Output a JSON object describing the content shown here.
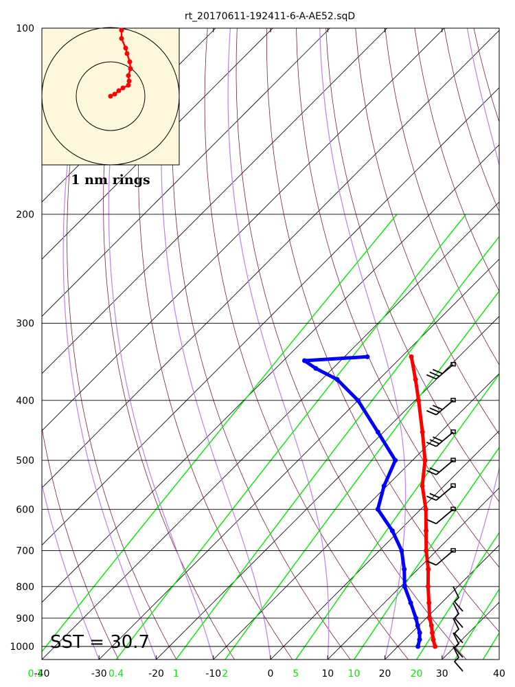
{
  "title": "rt_20170611-192411-6-A-AE52.sqD",
  "sst_label": "SST = 30.7",
  "inset_caption": "1 nm rings",
  "chart_data": {
    "type": "skew-t log-p sounding",
    "y_axis": {
      "scale": "log",
      "range": [
        1050,
        100
      ],
      "ticks": [
        100,
        200,
        300,
        400,
        500,
        600,
        700,
        800,
        900,
        1000
      ]
    },
    "x_axis": {
      "range": [
        -40,
        40
      ],
      "ticks": [
        -40,
        -30,
        -20,
        -10,
        0,
        10,
        20,
        30,
        40
      ]
    },
    "mixing_ratio_labels": [
      "0.1",
      "0.4",
      "1",
      "2",
      "5",
      "10",
      "20"
    ],
    "temperature": {
      "color": "#ff0000",
      "points": [
        [
          1000,
          26.5
        ],
        [
          975,
          25.0
        ],
        [
          950,
          23.6
        ],
        [
          925,
          22.2
        ],
        [
          900,
          20.6
        ],
        [
          850,
          17.8
        ],
        [
          800,
          14.8
        ],
        [
          750,
          11.8
        ],
        [
          700,
          8.2
        ],
        [
          650,
          4.7
        ],
        [
          600,
          0.9
        ],
        [
          550,
          -3.8
        ],
        [
          500,
          -7.8
        ],
        [
          450,
          -13.2
        ],
        [
          400,
          -19.4
        ],
        [
          370,
          -23.6
        ],
        [
          340,
          -28.3
        ]
      ]
    },
    "dewpoint": {
      "color": "#0000ff",
      "points": [
        [
          1000,
          23.5
        ],
        [
          975,
          22.6
        ],
        [
          950,
          21.4
        ],
        [
          925,
          19.8
        ],
        [
          900,
          18.2
        ],
        [
          850,
          14.6
        ],
        [
          800,
          10.7
        ],
        [
          750,
          7.6
        ],
        [
          700,
          3.9
        ],
        [
          650,
          -1.2
        ],
        [
          600,
          -7.5
        ],
        [
          550,
          -10.5
        ],
        [
          500,
          -13.0
        ],
        [
          450,
          -21.0
        ],
        [
          400,
          -30.0
        ],
        [
          370,
          -37.3
        ],
        [
          355,
          -43.0
        ],
        [
          345,
          -46.3
        ],
        [
          340,
          -36.0
        ]
      ]
    },
    "wind_pressures": [
      1000,
      950,
      900,
      850,
      800,
      700,
      600,
      550,
      500,
      450,
      400,
      350
    ],
    "hodograph": {
      "ring_interval": "1 nm",
      "track_color": "#ff0000",
      "points_normalized": [
        [
          0.0,
          0.0
        ],
        [
          0.06,
          0.03
        ],
        [
          0.12,
          0.08
        ],
        [
          0.18,
          0.12
        ],
        [
          0.26,
          0.16
        ],
        [
          0.27,
          0.22
        ],
        [
          0.26,
          0.3
        ],
        [
          0.29,
          0.4
        ],
        [
          0.28,
          0.5
        ],
        [
          0.24,
          0.62
        ],
        [
          0.22,
          0.7
        ],
        [
          0.16,
          0.84
        ],
        [
          0.16,
          0.96
        ]
      ]
    }
  }
}
